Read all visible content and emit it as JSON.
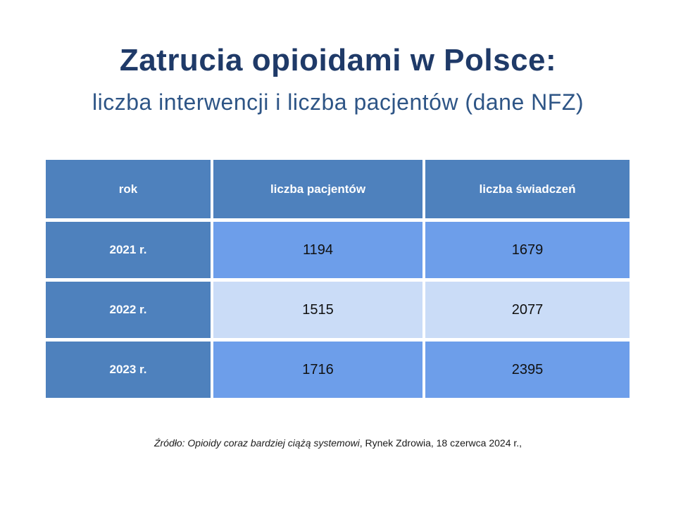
{
  "slide": {
    "title": "Zatrucia opioidami w Polsce:",
    "subtitle": "liczba interwencji i liczba pacjentów (dane NFZ)"
  },
  "footnote": {
    "italic": "Źródło: Opioidy coraz bardziej ciążą systemowi",
    "regular": ", Rynek Zdrowia, 18 czerwca 2024 r.,"
  },
  "colors": {
    "title-navy": "#1f3a68",
    "subtitle-blue": "#2e5586",
    "header-blue": "#4e81bd",
    "row-blue": "#6d9eea",
    "row-light-blue": "#cadcf7",
    "grid-white": "#ffffff",
    "number-black": "#111111"
  },
  "chart_data": {
    "type": "table",
    "title": "Zatrucia opioidami w Polsce: liczba interwencji i liczba pacjentów (dane NFZ)",
    "headers": [
      "rok",
      "liczba pacjentów",
      "liczba świadczeń"
    ],
    "rows": [
      {
        "year": "2021 r.",
        "values": [
          "1194",
          "1679"
        ],
        "tone": "mid"
      },
      {
        "year": "2022 r.",
        "values": [
          "1515",
          "2077"
        ],
        "tone": "light"
      },
      {
        "year": "2023 r.",
        "values": [
          "1716",
          "2395"
        ],
        "tone": "mid"
      }
    ],
    "layout": {
      "header_style": "steel-blue, white bold text",
      "year_column_style": "steel-blue, white bold text",
      "grid": "white 4-5px gaps between cells",
      "alignment": "all cells centered"
    }
  }
}
